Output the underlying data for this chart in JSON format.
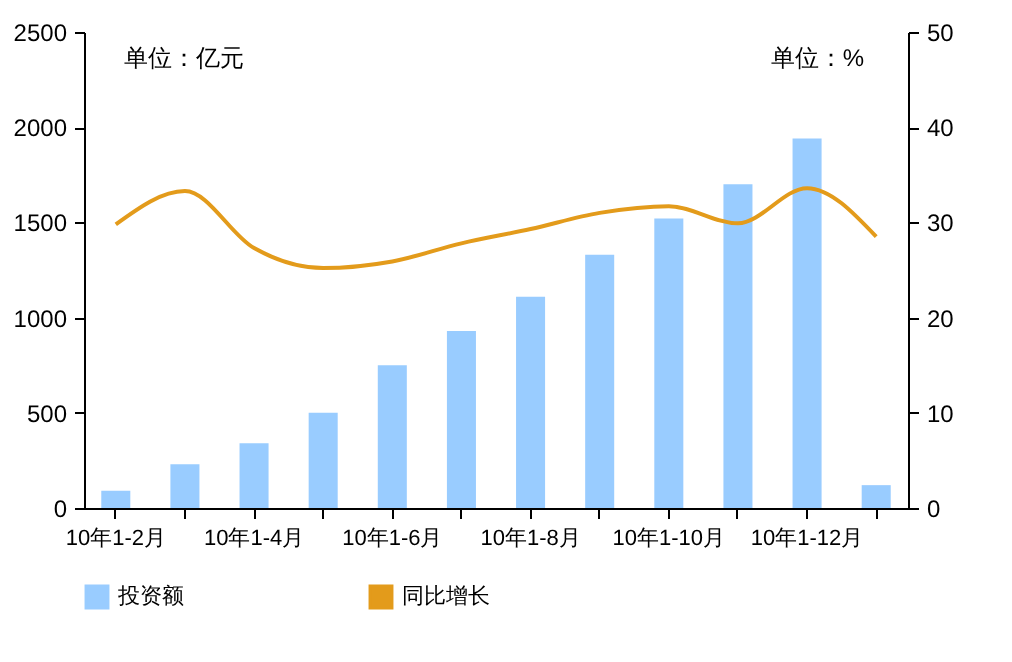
{
  "chart_data": {
    "type": "bar",
    "categories": [
      "10年1-2月",
      null,
      "10年1-4月",
      null,
      "10年1-6月",
      null,
      "10年1-8月",
      null,
      "10年1-10月",
      null,
      "10年1-12月",
      null
    ],
    "series": [
      {
        "name": "投资额",
        "color": "#99ccff",
        "values": [
          90,
          230,
          340,
          500,
          750,
          930,
          1110,
          1330,
          1520,
          1700,
          1940,
          120
        ]
      },
      {
        "name": "同比增长",
        "type": "line",
        "axis": "y2",
        "color": "#e39b1b",
        "values": [
          29.8,
          33.3,
          27.3,
          25.2,
          25.9,
          27.8,
          29.3,
          31.0,
          31.7,
          29.9,
          33.6,
          28.5
        ]
      }
    ],
    "ylim": [
      0,
      2500
    ],
    "yticks": [
      0,
      500,
      1000,
      1500,
      2000,
      2500
    ],
    "y2lim": [
      0,
      50
    ],
    "y2ticks": [
      0,
      10,
      20,
      30,
      40,
      50
    ],
    "annotations": [
      "单位：亿元",
      "单位：%"
    ],
    "legend": "bottom",
    "grid": false,
    "marker": "none"
  }
}
